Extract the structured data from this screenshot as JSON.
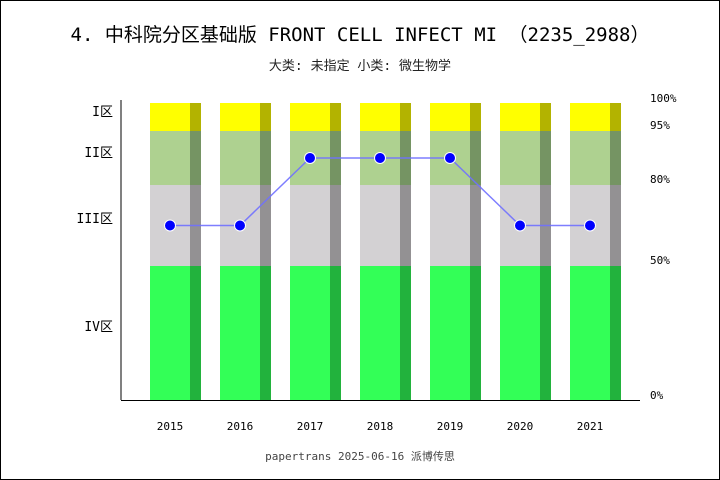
{
  "chart_data": {
    "type": "bar",
    "title": "4. 中科院分区基础版 FRONT CELL INFECT MI （2235_2988）",
    "subtitle": "大类: 未指定 小类: 微生物学",
    "footer": "papertrans 2025-06-16 派博传思",
    "categories": [
      "2015",
      "2016",
      "2017",
      "2018",
      "2019",
      "2020",
      "2021"
    ],
    "zones": [
      {
        "label": "IV区",
        "from": 0,
        "to": 50,
        "color": "#33ff57",
        "shade": "#22b23d"
      },
      {
        "label": "III区",
        "from": 50,
        "to": 80,
        "color": "#d3d1d3",
        "shade": "#939193"
      },
      {
        "label": "II区",
        "from": 80,
        "to": 95,
        "color": "#aed190",
        "shade": "#759463"
      },
      {
        "label": "I区",
        "from": 95,
        "to": 100,
        "color": "#ffff00",
        "shade": "#b3b300"
      }
    ],
    "right_ticks": [
      "100%",
      "95%",
      "80%",
      "50%",
      "0%"
    ],
    "right_tick_values": [
      100,
      95,
      80,
      50,
      0
    ],
    "series": [
      {
        "values": [
          "III区",
          "III区",
          "II区",
          "II区",
          "II区",
          "III区",
          "III区"
        ]
      }
    ],
    "line_color": "#7070ff",
    "marker_color": "#0000ff"
  }
}
